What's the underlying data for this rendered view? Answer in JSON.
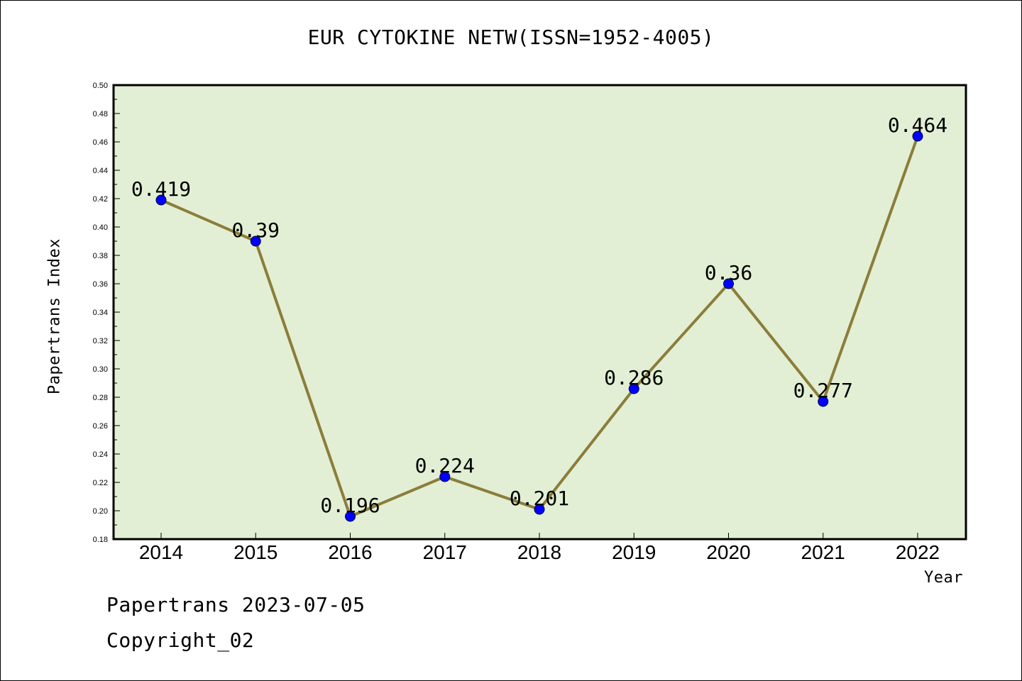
{
  "chart_data": {
    "type": "line",
    "title": "EUR CYTOKINE NETW(ISSN=1952-4005)",
    "xlabel": "Year",
    "ylabel": "Papertrans Index",
    "categories": [
      "2014",
      "2015",
      "2016",
      "2017",
      "2018",
      "2019",
      "2020",
      "2021",
      "2022"
    ],
    "series": [
      {
        "values": [
          0.419,
          0.39,
          0.196,
          0.224,
          0.201,
          0.286,
          0.36,
          0.277,
          0.464
        ],
        "data_labels": [
          "0.419",
          "0.39",
          "0.196",
          "0.224",
          "0.201",
          "0.286",
          "0.36",
          "0.277",
          "0.464"
        ]
      }
    ],
    "ylim": [
      0.18,
      0.5
    ],
    "yticks": [
      "0.18",
      "0.20",
      "0.22",
      "0.24",
      "0.26",
      "0.28",
      "0.30",
      "0.32",
      "0.34",
      "0.36",
      "0.38",
      "0.40",
      "0.42",
      "0.44",
      "0.46",
      "0.48",
      "0.50"
    ],
    "grid": false,
    "colors": {
      "plot_background": "#e2efd4",
      "line": "#8b7d3a",
      "marker": "#0000ff"
    }
  },
  "footer": {
    "date_line": "Papertrans 2023-07-05",
    "copyright_line": "Copyright_02"
  }
}
